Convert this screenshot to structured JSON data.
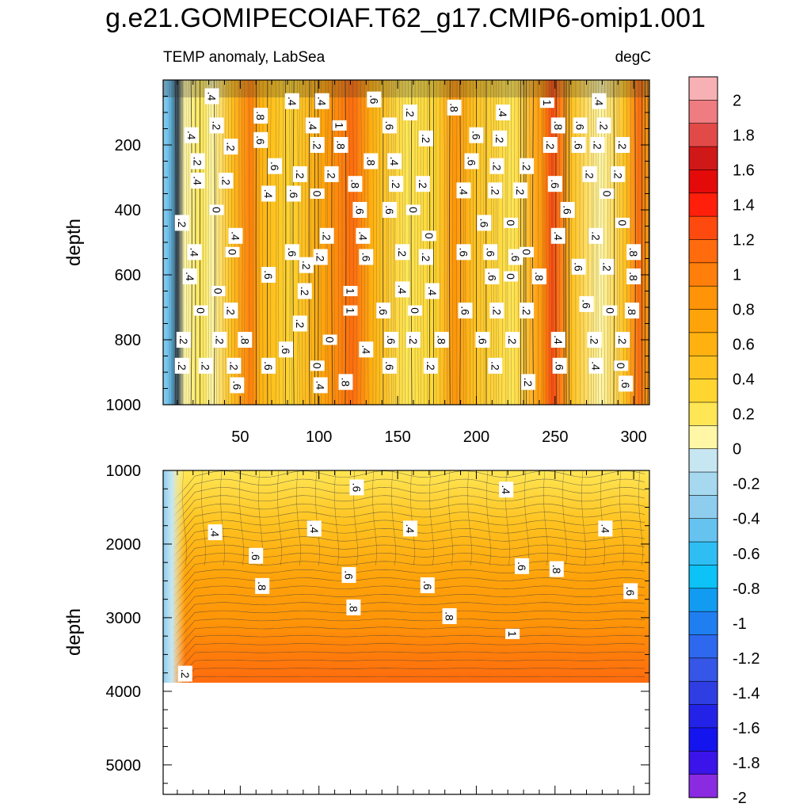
{
  "figure": {
    "title": "g.e21.GOMIPECOIAF.T62_g17.CMIP6-omip1.001",
    "subtitle_left": "TEMP anomaly, LabSea",
    "subtitle_right": "degC"
  },
  "colorbar": {
    "labels": [
      "2",
      "1.8",
      "1.6",
      "1.4",
      "1.2",
      "1",
      "0.8",
      "0.6",
      "0.4",
      "0.2",
      "0",
      "-0.2",
      "-0.4",
      "-0.6",
      "-0.8",
      "-1",
      "-1.2",
      "-1.4",
      "-1.6",
      "-1.8",
      "-2"
    ],
    "colors": [
      "#f7b1b5",
      "#ef7c80",
      "#e24a48",
      "#d01818",
      "#e40a0a",
      "#ff1f0a",
      "#ff4a0f",
      "#ff6b0d",
      "#ff7f0a",
      "#ff9408",
      "#ffa30a",
      "#ffb20f",
      "#ffc21f",
      "#ffd530",
      "#ffe654",
      "#fff7a6",
      "#c6e6f2",
      "#a6d9f0",
      "#8ecdee",
      "#66c3f0",
      "#2ebef3",
      "#0cc2f6",
      "#119cf2",
      "#1f7ff0",
      "#2d68ee",
      "#3556e6",
      "#2f3ee2",
      "#2323e8",
      "#1414ee",
      "#3a14e8",
      "#8a2be2"
    ]
  },
  "chart_data": [
    {
      "type": "heatmap",
      "panel": "upper",
      "xlabel": "",
      "ylabel": "depth",
      "xlim": [
        1,
        310
      ],
      "ylim": [
        1000,
        0
      ],
      "y_reversed": true,
      "xticks": [
        "50",
        "100",
        "150",
        "200",
        "250",
        "300"
      ],
      "xtick_values": [
        50,
        100,
        150,
        200,
        250,
        300
      ],
      "yticks": [
        "200",
        "400",
        "600",
        "800",
        "1000"
      ],
      "ytick_values": [
        200,
        400,
        600,
        800,
        1000
      ],
      "contour_labels": [
        {
          "text": ".4",
          "x": 32,
          "y": 50
        },
        {
          "text": ".4",
          "x": 83,
          "y": 65
        },
        {
          "text": ".4",
          "x": 102,
          "y": 65
        },
        {
          "text": ".6",
          "x": 135,
          "y": 60
        },
        {
          "text": ".2",
          "x": 158,
          "y": 100
        },
        {
          "text": ".8",
          "x": 186,
          "y": 85
        },
        {
          "text": ".4",
          "x": 217,
          "y": 100
        },
        {
          "text": "1",
          "x": 245,
          "y": 70
        },
        {
          "text": ".4",
          "x": 278,
          "y": 65
        },
        {
          "text": ".2",
          "x": 35,
          "y": 140
        },
        {
          "text": ".8",
          "x": 63,
          "y": 110
        },
        {
          "text": ".4",
          "x": 96,
          "y": 140
        },
        {
          "text": "1",
          "x": 113,
          "y": 140
        },
        {
          "text": ".6",
          "x": 145,
          "y": 140
        },
        {
          "text": ".8",
          "x": 252,
          "y": 140
        },
        {
          "text": ".6",
          "x": 266,
          "y": 140
        },
        {
          "text": ".2",
          "x": 281,
          "y": 140
        },
        {
          "text": ".4",
          "x": 19,
          "y": 170
        },
        {
          "text": ".2",
          "x": 44,
          "y": 205
        },
        {
          "text": ".6",
          "x": 63,
          "y": 185
        },
        {
          "text": ".6",
          "x": 200,
          "y": 170
        },
        {
          "text": ".2",
          "x": 215,
          "y": 180
        },
        {
          "text": ".2",
          "x": 168,
          "y": 180
        },
        {
          "text": ".2",
          "x": 99,
          "y": 200
        },
        {
          "text": ".8",
          "x": 114,
          "y": 200
        },
        {
          "text": ".6",
          "x": 265,
          "y": 200
        },
        {
          "text": ".2",
          "x": 277,
          "y": 200
        },
        {
          "text": ".2",
          "x": 293,
          "y": 200
        },
        {
          "text": ".2",
          "x": 247,
          "y": 200
        },
        {
          "text": ".2",
          "x": 23,
          "y": 250
        },
        {
          "text": ".6",
          "x": 72,
          "y": 265
        },
        {
          "text": ".2",
          "x": 88,
          "y": 290
        },
        {
          "text": ".2",
          "x": 108,
          "y": 290
        },
        {
          "text": ".8",
          "x": 133,
          "y": 250
        },
        {
          "text": ".4",
          "x": 148,
          "y": 250
        },
        {
          "text": ".6",
          "x": 197,
          "y": 250
        },
        {
          "text": ".2",
          "x": 213,
          "y": 265
        },
        {
          "text": ".2",
          "x": 232,
          "y": 265
        },
        {
          "text": ".2",
          "x": 272,
          "y": 290
        },
        {
          "text": ".2",
          "x": 290,
          "y": 290
        },
        {
          "text": ".4",
          "x": 23,
          "y": 310
        },
        {
          "text": ".2",
          "x": 41,
          "y": 310
        },
        {
          "text": ".8",
          "x": 123,
          "y": 320
        },
        {
          "text": ".2",
          "x": 149,
          "y": 320
        },
        {
          "text": ".2",
          "x": 166,
          "y": 320
        },
        {
          "text": ".6",
          "x": 250,
          "y": 320
        },
        {
          "text": ".4",
          "x": 68,
          "y": 350
        },
        {
          "text": ".6",
          "x": 84,
          "y": 350
        },
        {
          "text": "0",
          "x": 99,
          "y": 350
        },
        {
          "text": ".4",
          "x": 192,
          "y": 340
        },
        {
          "text": ".2",
          "x": 212,
          "y": 340
        },
        {
          "text": ".2",
          "x": 228,
          "y": 340
        },
        {
          "text": "0",
          "x": 283,
          "y": 350
        },
        {
          "text": "0",
          "x": 35,
          "y": 400
        },
        {
          "text": ".6",
          "x": 126,
          "y": 400
        },
        {
          "text": ".6",
          "x": 145,
          "y": 400
        },
        {
          "text": "0",
          "x": 160,
          "y": 400
        },
        {
          "text": ".6",
          "x": 258,
          "y": 400
        },
        {
          "text": ".2",
          "x": 13,
          "y": 440
        },
        {
          "text": ".6",
          "x": 205,
          "y": 440
        },
        {
          "text": "0",
          "x": 222,
          "y": 440
        },
        {
          "text": "0",
          "x": 293,
          "y": 440
        },
        {
          "text": ".4",
          "x": 47,
          "y": 480
        },
        {
          "text": ".2",
          "x": 105,
          "y": 480
        },
        {
          "text": ".4",
          "x": 128,
          "y": 480
        },
        {
          "text": "0",
          "x": 170,
          "y": 480
        },
        {
          "text": ".4",
          "x": 252,
          "y": 480
        },
        {
          "text": ".2",
          "x": 276,
          "y": 480
        },
        {
          "text": ".4",
          "x": 21,
          "y": 530
        },
        {
          "text": "0",
          "x": 45,
          "y": 530
        },
        {
          "text": ".6",
          "x": 83,
          "y": 530
        },
        {
          "text": ".2",
          "x": 101,
          "y": 545
        },
        {
          "text": ".6",
          "x": 130,
          "y": 545
        },
        {
          "text": ".2",
          "x": 153,
          "y": 530
        },
        {
          "text": ".2",
          "x": 168,
          "y": 545
        },
        {
          "text": ".6",
          "x": 192,
          "y": 530
        },
        {
          "text": ".6",
          "x": 209,
          "y": 530
        },
        {
          "text": ".6",
          "x": 225,
          "y": 545
        },
        {
          "text": "0",
          "x": 232,
          "y": 530
        },
        {
          "text": ".8",
          "x": 300,
          "y": 530
        },
        {
          "text": ".4",
          "x": 18,
          "y": 605
        },
        {
          "text": ".6",
          "x": 68,
          "y": 600
        },
        {
          "text": ".2",
          "x": 92,
          "y": 570
        },
        {
          "text": ".6",
          "x": 265,
          "y": 575
        },
        {
          "text": ".2",
          "x": 283,
          "y": 575
        },
        {
          "text": ".8",
          "x": 300,
          "y": 605
        },
        {
          "text": ".6",
          "x": 210,
          "y": 605
        },
        {
          "text": "0",
          "x": 222,
          "y": 605
        },
        {
          "text": ".8",
          "x": 240,
          "y": 605
        },
        {
          "text": "0",
          "x": 36,
          "y": 650
        },
        {
          "text": ".2",
          "x": 91,
          "y": 650
        },
        {
          "text": "1",
          "x": 120,
          "y": 650
        },
        {
          "text": ".4",
          "x": 153,
          "y": 645
        },
        {
          "text": ".4",
          "x": 172,
          "y": 650
        },
        {
          "text": "0",
          "x": 25,
          "y": 710
        },
        {
          "text": ".2",
          "x": 44,
          "y": 710
        },
        {
          "text": "1",
          "x": 120,
          "y": 710
        },
        {
          "text": ".6",
          "x": 141,
          "y": 710
        },
        {
          "text": "0",
          "x": 161,
          "y": 710
        },
        {
          "text": ".6",
          "x": 193,
          "y": 710
        },
        {
          "text": ".2",
          "x": 213,
          "y": 710
        },
        {
          "text": ".2",
          "x": 232,
          "y": 710
        },
        {
          "text": ".6",
          "x": 270,
          "y": 690
        },
        {
          "text": "0",
          "x": 285,
          "y": 710
        },
        {
          "text": ".8",
          "x": 299,
          "y": 710
        },
        {
          "text": ".2",
          "x": 88,
          "y": 750
        },
        {
          "text": ".2",
          "x": 14,
          "y": 800
        },
        {
          "text": ".2",
          "x": 37,
          "y": 800
        },
        {
          "text": ".8",
          "x": 53,
          "y": 800
        },
        {
          "text": "0",
          "x": 107,
          "y": 800
        },
        {
          "text": ".6",
          "x": 146,
          "y": 800
        },
        {
          "text": ".2",
          "x": 160,
          "y": 800
        },
        {
          "text": ".8",
          "x": 178,
          "y": 800
        },
        {
          "text": ".6",
          "x": 204,
          "y": 800
        },
        {
          "text": ".2",
          "x": 223,
          "y": 800
        },
        {
          "text": ".4",
          "x": 252,
          "y": 800
        },
        {
          "text": ".2",
          "x": 275,
          "y": 800
        },
        {
          "text": ".2",
          "x": 293,
          "y": 800
        },
        {
          "text": ".6",
          "x": 79,
          "y": 830
        },
        {
          "text": ".4",
          "x": 130,
          "y": 830
        },
        {
          "text": ".2",
          "x": 13,
          "y": 880
        },
        {
          "text": ".2",
          "x": 28,
          "y": 880
        },
        {
          "text": ".2",
          "x": 46,
          "y": 880
        },
        {
          "text": ".6",
          "x": 68,
          "y": 880
        },
        {
          "text": "0",
          "x": 99,
          "y": 880
        },
        {
          "text": ".6",
          "x": 145,
          "y": 880
        },
        {
          "text": ".2",
          "x": 171,
          "y": 880
        },
        {
          "text": ".2",
          "x": 212,
          "y": 880
        },
        {
          "text": ".6",
          "x": 253,
          "y": 880
        },
        {
          "text": ".4",
          "x": 276,
          "y": 880
        },
        {
          "text": "0",
          "x": 292,
          "y": 880
        },
        {
          "text": ".6",
          "x": 48,
          "y": 940
        },
        {
          "text": ".4",
          "x": 101,
          "y": 940
        },
        {
          "text": ".8",
          "x": 117,
          "y": 930
        },
        {
          "text": ".2",
          "x": 233,
          "y": 930
        },
        {
          "text": ".6",
          "x": 295,
          "y": 935
        }
      ]
    },
    {
      "type": "heatmap",
      "panel": "lower",
      "xlabel": "",
      "ylabel": "depth",
      "xlim": [
        1,
        310
      ],
      "ylim": [
        5400,
        1000
      ],
      "y_reversed": true,
      "data_bottom_depth": 3880,
      "yticks": [
        "1000",
        "2000",
        "3000",
        "4000",
        "5000"
      ],
      "ytick_values": [
        1000,
        2000,
        3000,
        4000,
        5000
      ],
      "contour_labels": [
        {
          "text": ".6",
          "x": 124,
          "y": 1230
        },
        {
          "text": ".4",
          "x": 219,
          "y": 1260
        },
        {
          "text": ".4",
          "x": 34,
          "y": 1840
        },
        {
          "text": ".4",
          "x": 97,
          "y": 1790
        },
        {
          "text": ".4",
          "x": 158,
          "y": 1790
        },
        {
          "text": ".4",
          "x": 282,
          "y": 1790
        },
        {
          "text": ".6",
          "x": 60,
          "y": 2160
        },
        {
          "text": ".6",
          "x": 119,
          "y": 2420
        },
        {
          "text": ".6",
          "x": 169,
          "y": 2560
        },
        {
          "text": ".6",
          "x": 229,
          "y": 2300
        },
        {
          "text": ".8",
          "x": 251,
          "y": 2340
        },
        {
          "text": ".6",
          "x": 298,
          "y": 2640
        },
        {
          "text": ".8",
          "x": 64,
          "y": 2570
        },
        {
          "text": ".8",
          "x": 122,
          "y": 2860
        },
        {
          "text": ".8",
          "x": 183,
          "y": 2980
        },
        {
          "text": "1",
          "x": 223,
          "y": 3220
        },
        {
          "text": ".2",
          "x": 15,
          "y": 3760
        }
      ]
    }
  ]
}
